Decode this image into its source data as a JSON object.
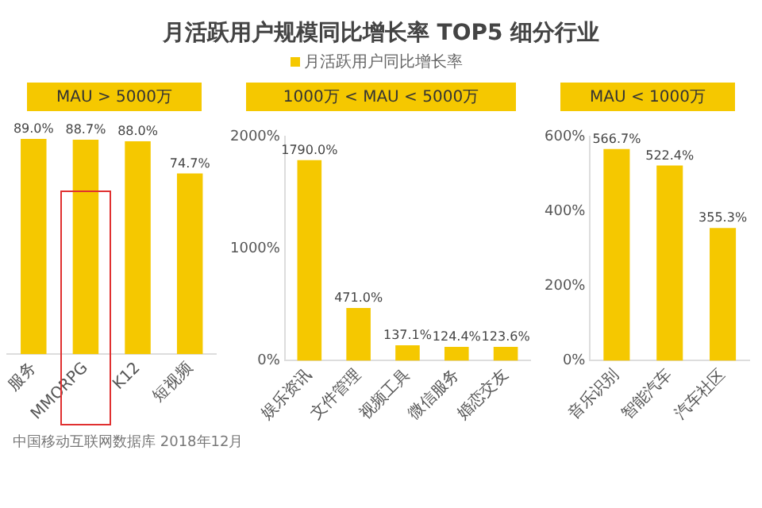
{
  "chart_data": [
    {
      "type": "bar",
      "title": "月活跃用户规模同比增长率 TOP5 细分行业",
      "subtitle": "MAU > 5000万",
      "categories": [
        "服务",
        "MMORPG",
        "K12",
        "短视频"
      ],
      "series": [
        {
          "name": "月活跃用户同比增长率",
          "color": "#f5c800",
          "values": [
            89.0,
            88.7,
            88.0,
            74.7
          ],
          "value_labels": [
            "89.0%",
            "88.7%",
            "88.0%",
            "74.7%"
          ]
        }
      ],
      "legend": "top",
      "grid": false,
      "tick_labels": "x",
      "annotations": [
        "中国移动互联网数据库 2018年12月"
      ]
    },
    {
      "type": "bar",
      "subtitle": "1000万 < MAU < 5000万",
      "categories": [
        "娱乐资讯",
        "文件管理",
        "视频工具",
        "微信服务",
        "婚恋交友"
      ],
      "series": [
        {
          "color": "#f5c800",
          "values": [
            1790.0,
            471.0,
            137.1,
            124.4,
            123.6
          ],
          "value_labels": [
            "1790.0%",
            "471.0%",
            "137.1%",
            "124.4%",
            "123.6%"
          ]
        }
      ],
      "ylim": [
        0,
        2000
      ],
      "yticks": [
        {
          "value": 0,
          "label": "0%"
        },
        {
          "value": 1000,
          "label": "1000%"
        },
        {
          "value": 2000,
          "label": "2000%"
        }
      ],
      "grid": false
    },
    {
      "type": "bar",
      "subtitle": "MAU < 1000万",
      "categories": [
        "音乐识别",
        "智能汽车",
        "汽车社区"
      ],
      "series": [
        {
          "color": "#f5c800",
          "values": [
            566.7,
            522.4,
            355.3
          ],
          "value_labels": [
            "566.7%",
            "522.4%",
            "355.3%"
          ]
        }
      ],
      "ylim": [
        0,
        600
      ],
      "yticks": [
        {
          "value": 0,
          "label": "0%"
        },
        {
          "value": 200,
          "label": "200%"
        },
        {
          "value": 400,
          "label": "400%"
        },
        {
          "value": 600,
          "label": "600%"
        }
      ],
      "grid": false
    }
  ]
}
